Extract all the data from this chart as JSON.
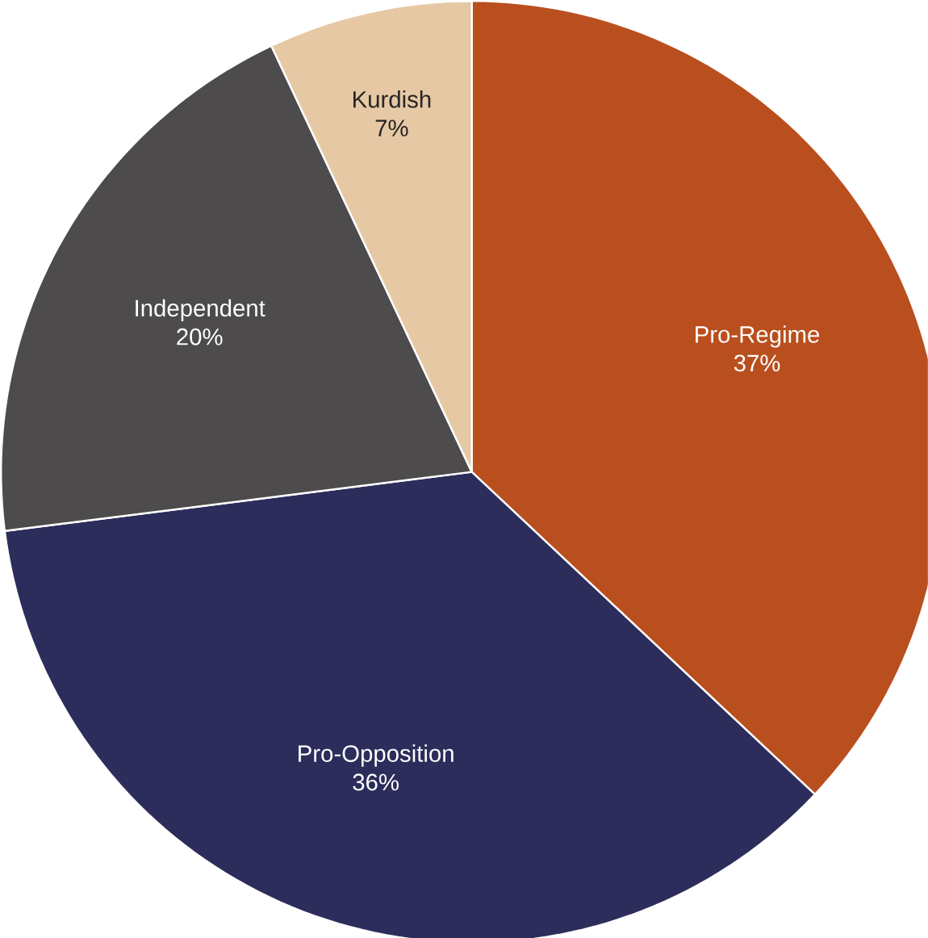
{
  "chart_data": {
    "type": "pie",
    "categories": [
      "Pro-Regime",
      "Pro-Opposition",
      "Independent",
      "Kurdish"
    ],
    "values": [
      37,
      36,
      20,
      7
    ],
    "value_labels": [
      "37%",
      "36%",
      "20%",
      "7%"
    ],
    "colors": [
      "#b94f1e",
      "#2d2d5c",
      "#4d4b4b",
      "#e6c9a4"
    ]
  }
}
